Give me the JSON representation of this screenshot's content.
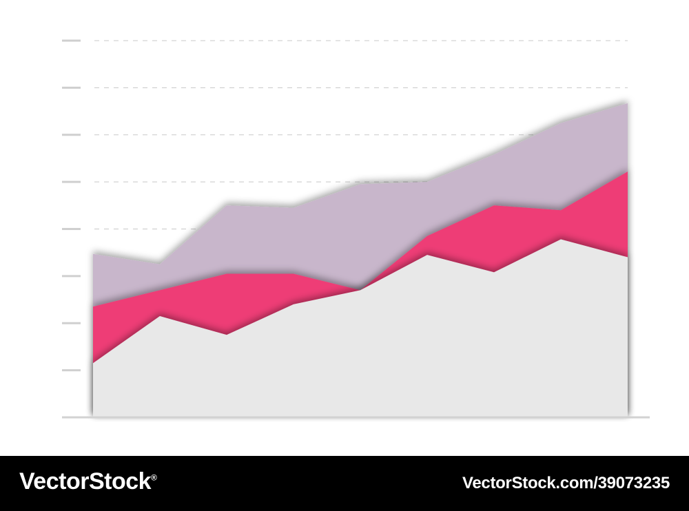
{
  "chart_data": {
    "type": "area",
    "stacked": true,
    "x": [
      1,
      2,
      3,
      4,
      5,
      6,
      7,
      8,
      9
    ],
    "ylim": [
      0,
      8
    ],
    "grid": true,
    "series": [
      {
        "values": [
          1.15,
          2.15,
          1.75,
          2.4,
          2.7,
          3.45,
          3.08,
          3.78,
          3.4
        ],
        "color": "#e8e8e8"
      },
      {
        "values": [
          1.2,
          0.55,
          1.3,
          0.65,
          0,
          0.4,
          1.42,
          0.62,
          1.82
        ],
        "color": "#ee3c76"
      },
      {
        "values": [
          1.12,
          0.55,
          1.45,
          1.4,
          2.25,
          1.15,
          1.08,
          1.85,
          1.45
        ],
        "color": "#c8b6cb"
      }
    ]
  },
  "watermark": {
    "brand": "VectorStock",
    "registered": "®",
    "id": "VectorStock.com/39073235"
  }
}
